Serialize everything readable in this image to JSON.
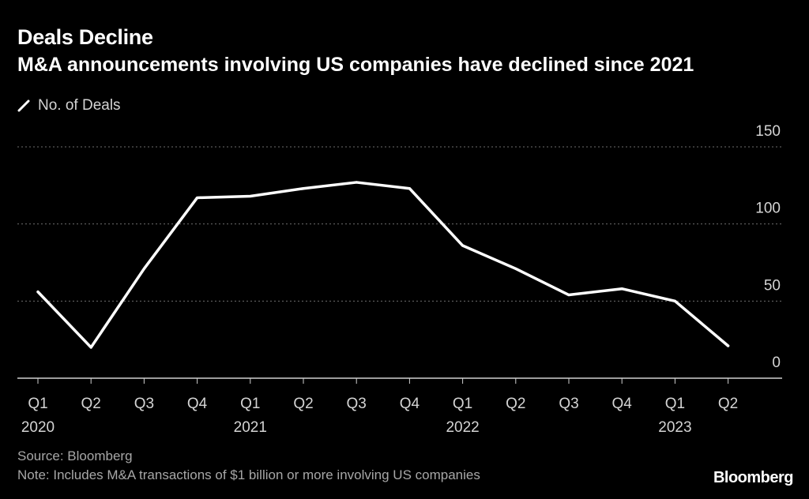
{
  "header": {
    "title": "Deals Decline",
    "subtitle": "M&A announcements involving US companies have declined since 2021"
  },
  "legend": {
    "label": "No. of Deals",
    "icon": "line-swatch-icon"
  },
  "footer": {
    "source": "Source: Bloomberg",
    "note": "Note: Includes M&A transactions of $1 billion or more involving US companies",
    "brand": "Bloomberg"
  },
  "colors": {
    "background": "#000000",
    "line": "#ffffff",
    "grid": "#6e6e6e",
    "tick_text": "#d4d4d4",
    "footer_text": "#a7a7a7"
  },
  "chart_data": {
    "type": "line",
    "title": "Deals Decline",
    "subtitle": "M&A announcements involving US companies have declined since 2021",
    "categories": [
      "Q1",
      "Q2",
      "Q3",
      "Q4",
      "Q1",
      "Q2",
      "Q3",
      "Q4",
      "Q1",
      "Q2",
      "Q3",
      "Q4",
      "Q1",
      "Q2"
    ],
    "year_labels": [
      {
        "index": 0,
        "label": "2020"
      },
      {
        "index": 4,
        "label": "2021"
      },
      {
        "index": 8,
        "label": "2022"
      },
      {
        "index": 12,
        "label": "2023"
      }
    ],
    "series": [
      {
        "name": "No. of Deals",
        "values": [
          56,
          20,
          71,
          117,
          118,
          123,
          127,
          123,
          86,
          71,
          54,
          58,
          50,
          21
        ]
      }
    ],
    "y_ticks": [
      0,
      50,
      100,
      150
    ],
    "ylim": [
      0,
      150
    ],
    "grid": true,
    "y_axis_side": "right",
    "legend_position": "top-left",
    "xlabel": "",
    "ylabel": ""
  }
}
